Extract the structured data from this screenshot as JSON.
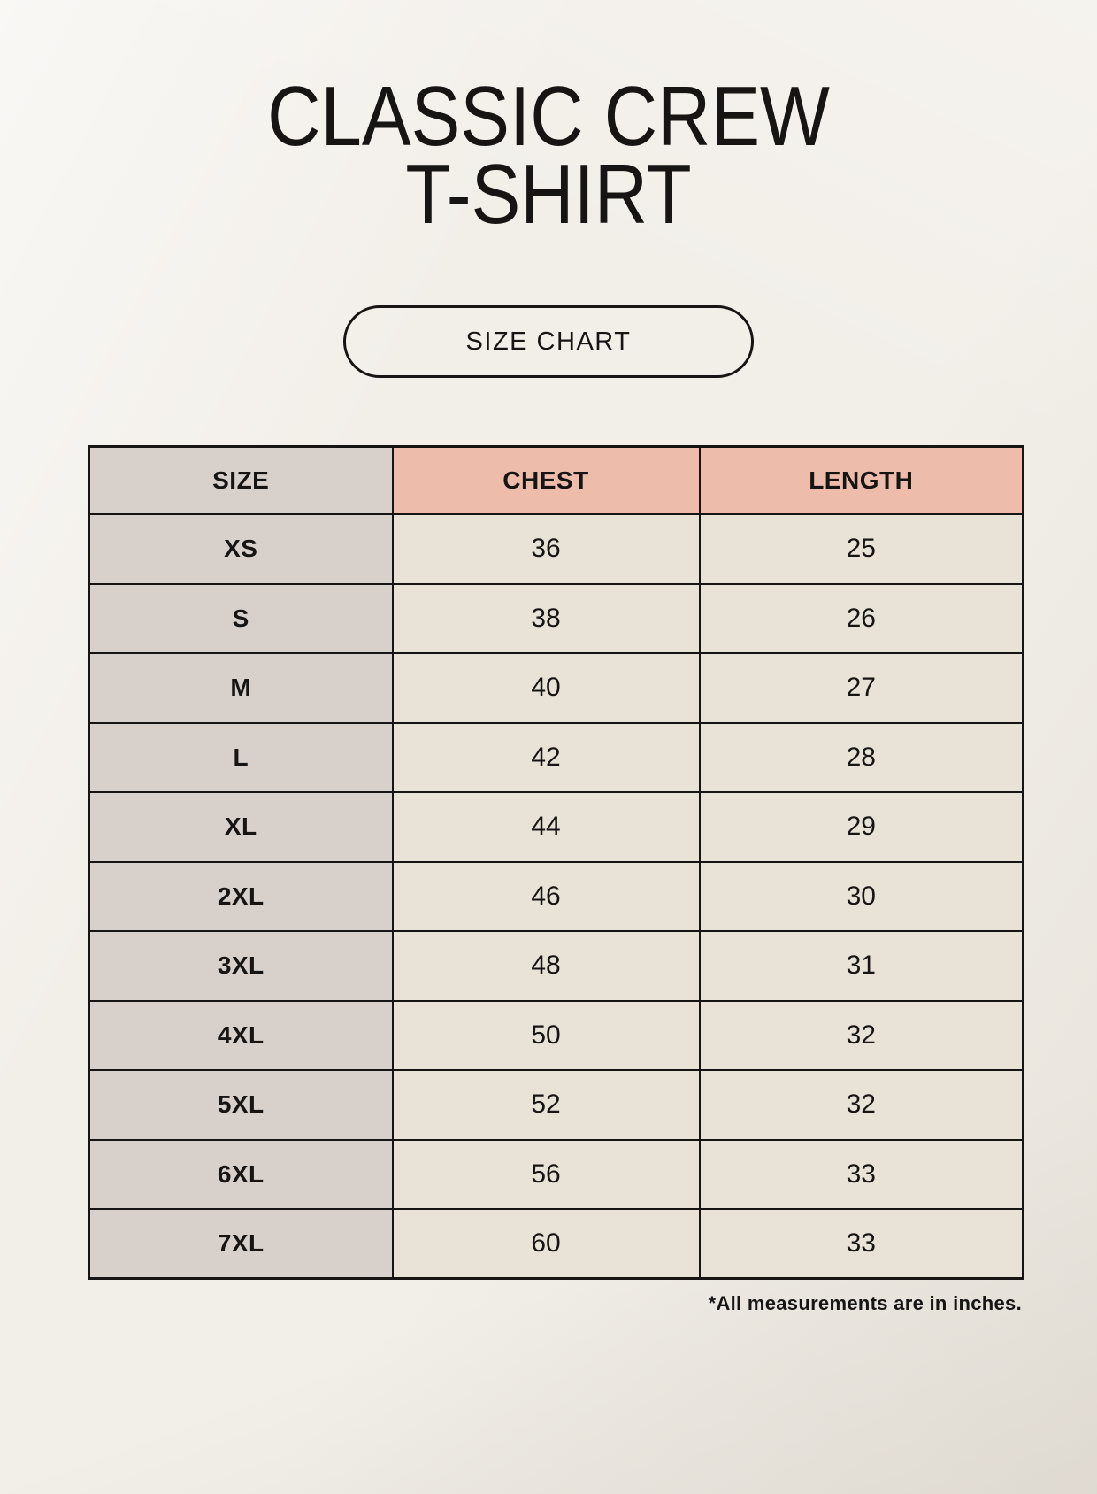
{
  "page": {
    "title_line1": "CLASSIC CREW",
    "title_line2": "T-SHIRT",
    "badge_label": "SIZE CHART",
    "footnote": "*All measurements are in inches."
  },
  "chart_data": {
    "type": "table",
    "title": "CLASSIC CREW T-SHIRT",
    "subtitle": "SIZE CHART",
    "units": "inches",
    "columns": [
      "SIZE",
      "CHEST",
      "LENGTH"
    ],
    "rows": [
      [
        "XS",
        36,
        25
      ],
      [
        "S",
        38,
        26
      ],
      [
        "M",
        40,
        27
      ],
      [
        "L",
        42,
        28
      ],
      [
        "XL",
        44,
        29
      ],
      [
        "2XL",
        46,
        30
      ],
      [
        "3XL",
        48,
        31
      ],
      [
        "4XL",
        50,
        32
      ],
      [
        "5XL",
        52,
        32
      ],
      [
        "6XL",
        56,
        33
      ],
      [
        "7XL",
        60,
        33
      ]
    ]
  },
  "colors": {
    "page-bg": "#f2efe9",
    "size-col-bg": "#d8d1cb",
    "measure-header-bg": "#edbcab",
    "data-cell-bg": "#e9e2d6",
    "table-border": "#161514",
    "text": "#161514"
  }
}
